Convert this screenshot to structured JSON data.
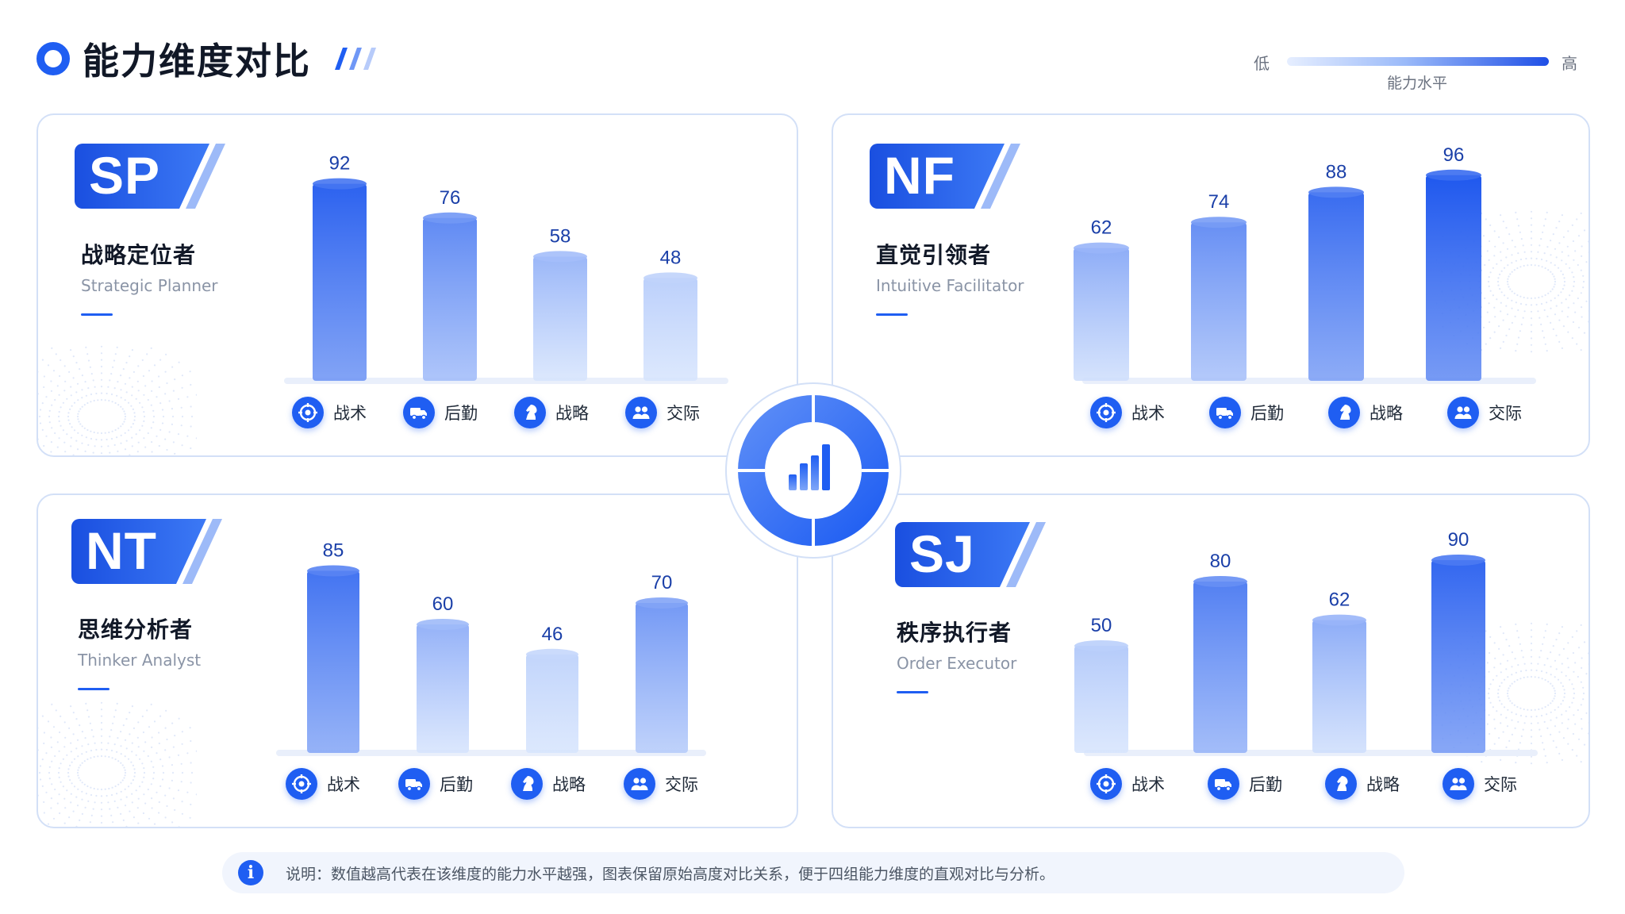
{
  "header": {
    "title": "能力维度对比",
    "legend": {
      "low": "低",
      "high": "高",
      "caption": "能力水平"
    }
  },
  "colors": {
    "accent": "#1f5ef2",
    "dark": "#1a4fe0",
    "light": "#e3ecff"
  },
  "categories": [
    {
      "label": "战术",
      "icon": "target-icon"
    },
    {
      "label": "后勤",
      "icon": "truck-icon"
    },
    {
      "label": "战略",
      "icon": "chess-knight-icon"
    },
    {
      "label": "交际",
      "icon": "people-icon"
    }
  ],
  "panels": [
    {
      "code": "SP",
      "name_cn": "战略定位者",
      "name_en": "Strategic Planner"
    },
    {
      "code": "NF",
      "name_cn": "直觉引领者",
      "name_en": "Intuitive Facilitator"
    },
    {
      "code": "NT",
      "name_cn": "思维分析者",
      "name_en": "Thinker Analyst"
    },
    {
      "code": "SJ",
      "name_cn": "秩序执行者",
      "name_en": "Order Executor"
    }
  ],
  "chart_data": [
    {
      "type": "bar",
      "title": "SP",
      "categories": [
        "战术",
        "后勤",
        "战略",
        "交际"
      ],
      "values": [
        92,
        76,
        58,
        48
      ],
      "ylim": [
        0,
        100
      ]
    },
    {
      "type": "bar",
      "title": "NF",
      "categories": [
        "战术",
        "后勤",
        "战略",
        "交际"
      ],
      "values": [
        62,
        74,
        88,
        96
      ],
      "ylim": [
        0,
        100
      ]
    },
    {
      "type": "bar",
      "title": "NT",
      "categories": [
        "战术",
        "后勤",
        "战略",
        "交际"
      ],
      "values": [
        85,
        60,
        46,
        70
      ],
      "ylim": [
        0,
        100
      ]
    },
    {
      "type": "bar",
      "title": "SJ",
      "categories": [
        "战术",
        "后勤",
        "战略",
        "交际"
      ],
      "values": [
        50,
        80,
        62,
        90
      ],
      "ylim": [
        0,
        100
      ]
    }
  ],
  "footer": {
    "note": "说明：数值越高代表在该维度的能力水平越强，图表保留原始高度对比关系，便于四组能力维度的直观对比与分析。"
  }
}
